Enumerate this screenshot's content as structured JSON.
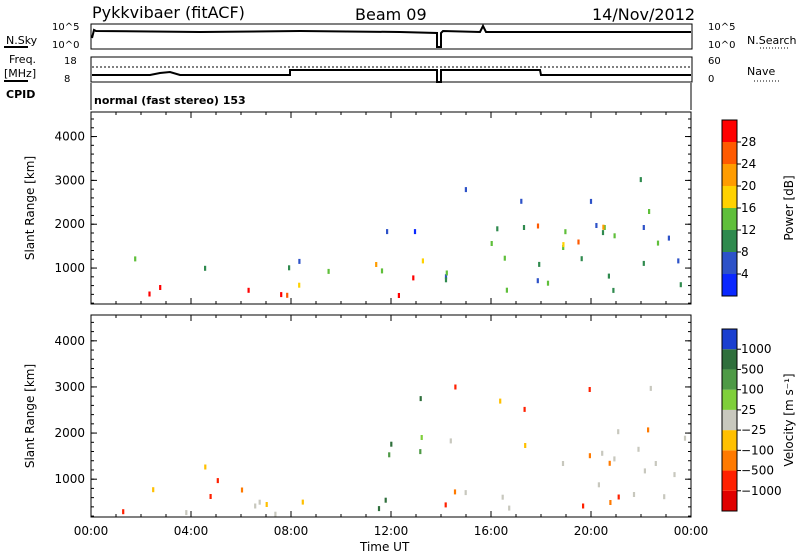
{
  "header": {
    "station": "Pykkvibaer (fitACF)",
    "beam": "Beam 09",
    "date": "14/Nov/2012"
  },
  "strip_labels": {
    "nsky": "N.Sky",
    "nsky_ticks": [
      "10^5",
      "10^0"
    ],
    "nsearch": "N.Search",
    "nsearch_ticks": [
      "10^5",
      "10^0"
    ],
    "freq": "Freq.",
    "freq_unit": "[MHz]",
    "freq_ticks": [
      "18",
      "8"
    ],
    "nave": "Nave",
    "nave_ticks": [
      "60",
      "0"
    ],
    "cpid": "CPID",
    "cpid_text": "normal (fast stereo) 153"
  },
  "chart_data": [
    {
      "type": "heatmap",
      "name": "power",
      "ylabel": "Slant Range [km]",
      "xlabel": "Time UT",
      "x_ticks": [
        "00:00",
        "04:00",
        "08:00",
        "12:00",
        "16:00",
        "20:00",
        "00:00"
      ],
      "xlim_hours": [
        0,
        24
      ],
      "y_ticks": [
        1000,
        2000,
        3000,
        4000
      ],
      "ylim": [
        180,
        4560
      ],
      "colorbar": {
        "label": "Power [dB]",
        "ticks": [
          "4",
          "8",
          "12",
          "16",
          "20",
          "24",
          "28"
        ],
        "colors": [
          "#0a28ff",
          "#2d52c8",
          "#2f8a4e",
          "#5fbf3a",
          "#ffd200",
          "#ff9c00",
          "#ff5a00",
          "#ff0000"
        ]
      },
      "regions": [
        {
          "t0": 0.1,
          "t1": 9.5,
          "r0": 250,
          "r1": 1350,
          "level": "low-mid"
        },
        {
          "t0": 10.8,
          "t1": 13.3,
          "r0": 250,
          "r1": 2800,
          "level": "high"
        },
        {
          "t0": 14.1,
          "t1": 24,
          "r0": 300,
          "r1": 3000,
          "level": "low"
        },
        {
          "t0": 17.3,
          "t1": 21.8,
          "r0": 1500,
          "r1": 2500,
          "level": "mixed"
        }
      ]
    },
    {
      "type": "heatmap",
      "name": "velocity",
      "ylabel": "Slant Range [km]",
      "xlabel": "Time UT",
      "x_ticks": [
        "00:00",
        "04:00",
        "08:00",
        "12:00",
        "16:00",
        "20:00",
        "00:00"
      ],
      "xlim_hours": [
        0,
        24
      ],
      "y_ticks": [
        1000,
        2000,
        3000,
        4000
      ],
      "ylim": [
        180,
        4560
      ],
      "colorbar": {
        "label": "Velocity [m s⁻¹]",
        "ticks": [
          "1000",
          "500",
          "100",
          "25",
          "−25",
          "−100",
          "−500",
          "−1000"
        ],
        "colors": [
          "#1a3fd0",
          "#2f6f3c",
          "#4e9a46",
          "#7fcf3a",
          "#c8c8be",
          "#ffc000",
          "#ff7a00",
          "#ff2000",
          "#e00000"
        ]
      },
      "regions": [
        {
          "t0": 0.1,
          "t1": 9.5,
          "r0": 200,
          "r1": 1350,
          "level": "negative"
        },
        {
          "t0": 10.8,
          "t1": 13.3,
          "r0": 300,
          "r1": 2800,
          "level": "positive"
        },
        {
          "t0": 14.1,
          "t1": 24,
          "r0": 300,
          "r1": 3000,
          "level": "near-zero"
        }
      ]
    }
  ]
}
